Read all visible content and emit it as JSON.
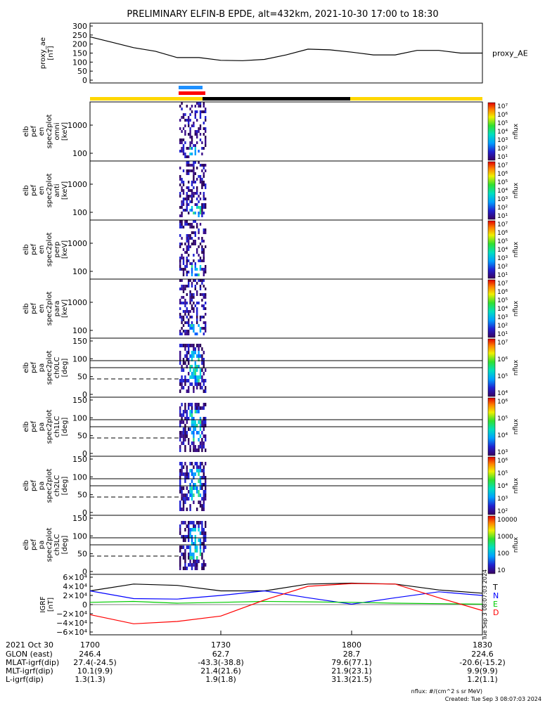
{
  "title": "PRELIMINARY ELFIN-B EPDE, alt=432km, 2021-10-30 17:00 to 18:30",
  "chart_data": [
    {
      "type": "line",
      "ylabel": [
        "proxy_ae",
        "[nT]"
      ],
      "series_label": "proxy_AE",
      "ylim": [
        0,
        300
      ],
      "yticks": [
        "300",
        "250",
        "200",
        "150",
        "100",
        "50",
        "0"
      ],
      "x_minutes": [
        0,
        5,
        10,
        15,
        20,
        25,
        30,
        35,
        40,
        45,
        50,
        55,
        60,
        65,
        70,
        75,
        80,
        85,
        90
      ],
      "values": [
        240,
        210,
        180,
        160,
        125,
        125,
        110,
        108,
        115,
        140,
        172,
        168,
        155,
        140,
        140,
        165,
        165,
        150,
        150
      ],
      "color": "#000000"
    },
    {
      "type": "heatmap",
      "ylabel": [
        "elb",
        "pef",
        "en",
        "spec2plot",
        "omni",
        "[keV]"
      ],
      "yticks": [
        "1000",
        "100"
      ],
      "colorbar_ticks": [
        "10^7",
        "10^6",
        "10^5",
        "10^4",
        "10^3",
        "10^2",
        "10^1"
      ],
      "colorbar_label": "nflux"
    },
    {
      "type": "heatmap",
      "ylabel": [
        "elb",
        "pef",
        "en",
        "spec2plot",
        "anti",
        "[keV]"
      ],
      "yticks": [
        "1000",
        "100"
      ],
      "colorbar_ticks": [
        "10^7",
        "10^6",
        "10^5",
        "10^4",
        "10^3",
        "10^2",
        "10^1"
      ],
      "colorbar_label": "nflux"
    },
    {
      "type": "heatmap",
      "ylabel": [
        "elb",
        "pef",
        "en",
        "spec2plot",
        "perp",
        "[keV]"
      ],
      "yticks": [
        "1000",
        "100"
      ],
      "colorbar_ticks": [
        "10^7",
        "10^6",
        "10^5",
        "10^4",
        "10^3",
        "10^2",
        "10^1"
      ],
      "colorbar_label": "nflux"
    },
    {
      "type": "heatmap",
      "ylabel": [
        "elb",
        "pef",
        "en",
        "spec2plot",
        "para",
        "[keV]"
      ],
      "yticks": [
        "1000",
        "100"
      ],
      "colorbar_ticks": [
        "10^7",
        "10^6",
        "10^5",
        "10^4",
        "10^3",
        "10^2",
        "10^1"
      ],
      "colorbar_label": "nflux"
    },
    {
      "type": "heatmap",
      "ylabel": [
        "elb",
        "pef",
        "pa",
        "spec2plot",
        "ch0LC",
        "[deg]"
      ],
      "yticks": [
        "150",
        "100",
        "50",
        "0"
      ],
      "colorbar_ticks": [
        "10^7",
        "10^6",
        "10^5",
        "10^4"
      ],
      "colorbar_label": "nflux"
    },
    {
      "type": "heatmap",
      "ylabel": [
        "elb",
        "pef",
        "pa",
        "spec2plot",
        "ch1LC",
        "[deg]"
      ],
      "yticks": [
        "150",
        "100",
        "50",
        "0"
      ],
      "colorbar_ticks": [
        "10^6",
        "10^5",
        "10^4",
        "10^3"
      ],
      "colorbar_label": "nflux"
    },
    {
      "type": "heatmap",
      "ylabel": [
        "elb",
        "pef",
        "pa",
        "spec2plot",
        "ch2LC",
        "[deg]"
      ],
      "yticks": [
        "150",
        "100",
        "50",
        "0"
      ],
      "colorbar_ticks": [
        "10^6",
        "10^5",
        "10^4",
        "10^3",
        "10^2"
      ],
      "colorbar_label": "nflux"
    },
    {
      "type": "heatmap",
      "ylabel": [
        "elb",
        "pef",
        "pa",
        "spec2plot",
        "ch3LC",
        "[deg]"
      ],
      "yticks": [
        "150",
        "100",
        "50",
        "0"
      ],
      "colorbar_ticks": [
        "10000",
        "1000",
        "100",
        "10"
      ],
      "colorbar_label": "nflux"
    },
    {
      "type": "line",
      "ylabel": [
        "IGRF",
        "[nT]"
      ],
      "ylim": [
        -60000,
        60000
      ],
      "yticks": [
        "6×10^4",
        "4×10^4",
        "2×10^4",
        "0",
        "−2×10^4",
        "−4×10^4",
        "−6×10^4"
      ],
      "x_minutes": [
        0,
        10,
        20,
        30,
        40,
        50,
        60,
        70,
        80,
        90
      ],
      "series": [
        {
          "name": "T",
          "color": "#000000",
          "values": [
            30000,
            45000,
            42000,
            30000,
            30000,
            45000,
            47000,
            45000,
            32000,
            25000
          ]
        },
        {
          "name": "N",
          "color": "#0000ff",
          "values": [
            30000,
            13000,
            12000,
            20000,
            30000,
            15000,
            1000,
            15000,
            28000,
            20000
          ]
        },
        {
          "name": "E",
          "color": "#00cc00",
          "values": [
            5000,
            7000,
            3000,
            5000,
            7000,
            6000,
            5000,
            3000,
            2000,
            1000
          ]
        },
        {
          "name": "D",
          "color": "#ff0000",
          "values": [
            -22000,
            -42000,
            -37000,
            -25000,
            10000,
            40000,
            46000,
            45000,
            15000,
            -13000
          ]
        }
      ],
      "side_text": "Tue Sep  3 08:07:03 2024"
    }
  ],
  "bars": {
    "top_blue": {
      "color": "#1e90ff"
    },
    "top_red": {
      "color": "#ff0000"
    },
    "ribbon_yellow": {
      "color": "#ffd700"
    },
    "ribbon_black": {
      "color": "#000000"
    }
  },
  "footer": {
    "rows": [
      [
        "2021 Oct 30",
        "1700",
        "1730",
        "1800",
        "1830"
      ],
      [
        "GLON (east)",
        "246.4",
        "62.7",
        "28.7",
        "224.6"
      ],
      [
        "MLAT-igrf(dip)",
        "27.4(-24.5)",
        "-43.3(-38.8)",
        "79.6(77.1)",
        "-20.6(-15.2)"
      ],
      [
        "MLT-igrf(dip)",
        "10.1(9.9)",
        "21.4(21.6)",
        "21.9(23.1)",
        "9.9(9.9)"
      ],
      [
        "L-igrf(dip)",
        "1.3(1.3)",
        "1.9(1.8)",
        "31.3(21.5)",
        "1.2(1.1)"
      ]
    ],
    "units_note": "nflux: #/(cm^2 s sr MeV)",
    "created": "Created: Tue Sep  3 08:07:03 2024"
  }
}
